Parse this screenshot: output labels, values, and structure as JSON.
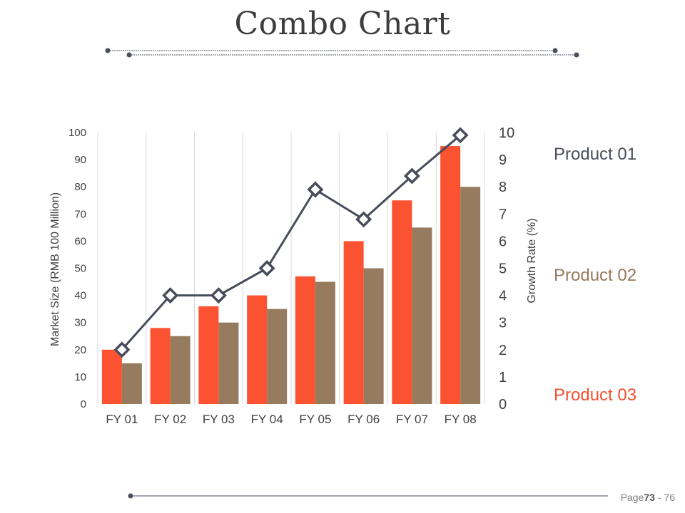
{
  "page": {
    "title": "Combo Chart",
    "footer_prefix": "Page",
    "footer_page": "73",
    "footer_sep": " - ",
    "footer_total": "76"
  },
  "legend": [
    {
      "label": "Product 01",
      "color": "#4a4f5c"
    },
    {
      "label": "Product 02",
      "color": "#957b5f"
    },
    {
      "label": "Product 03",
      "color": "#f4502f"
    }
  ],
  "colors": {
    "bar1": "#fb5232",
    "bar2": "#977b5f",
    "line": "#474c5a",
    "grid": "#d9d9d9",
    "axis_text": "#404040",
    "decor": "#4a4f5c"
  },
  "chart_data": {
    "type": "bar+line",
    "categories": [
      "FY 01",
      "FY 02",
      "FY 03",
      "FY 04",
      "FY 05",
      "FY 06",
      "FY 07",
      "FY 08"
    ],
    "series": [
      {
        "name": "Product 03",
        "type": "bar",
        "axis": "left",
        "values": [
          20,
          28,
          36,
          40,
          47,
          60,
          75,
          95
        ]
      },
      {
        "name": "Product 02",
        "type": "bar",
        "axis": "left",
        "values": [
          15,
          25,
          30,
          35,
          45,
          50,
          65,
          80
        ]
      },
      {
        "name": "Product 01",
        "type": "line",
        "axis": "right",
        "values": [
          2,
          4,
          4,
          5,
          7.9,
          6.8,
          8.4,
          9.9
        ]
      }
    ],
    "ylabel": "Market Size (RMB 100 Million)",
    "y2label": "Growth Rate (%)",
    "ylim": [
      0,
      100
    ],
    "y2lim": [
      0,
      10
    ],
    "yticks": [
      "0",
      "10",
      "20",
      "30",
      "40",
      "50",
      "60",
      "70",
      "80",
      "90",
      "100"
    ],
    "y2ticks": [
      "0",
      "1",
      "2",
      "3",
      "4",
      "5",
      "6",
      "7",
      "8",
      "9",
      "10"
    ],
    "grid": "vertical"
  }
}
